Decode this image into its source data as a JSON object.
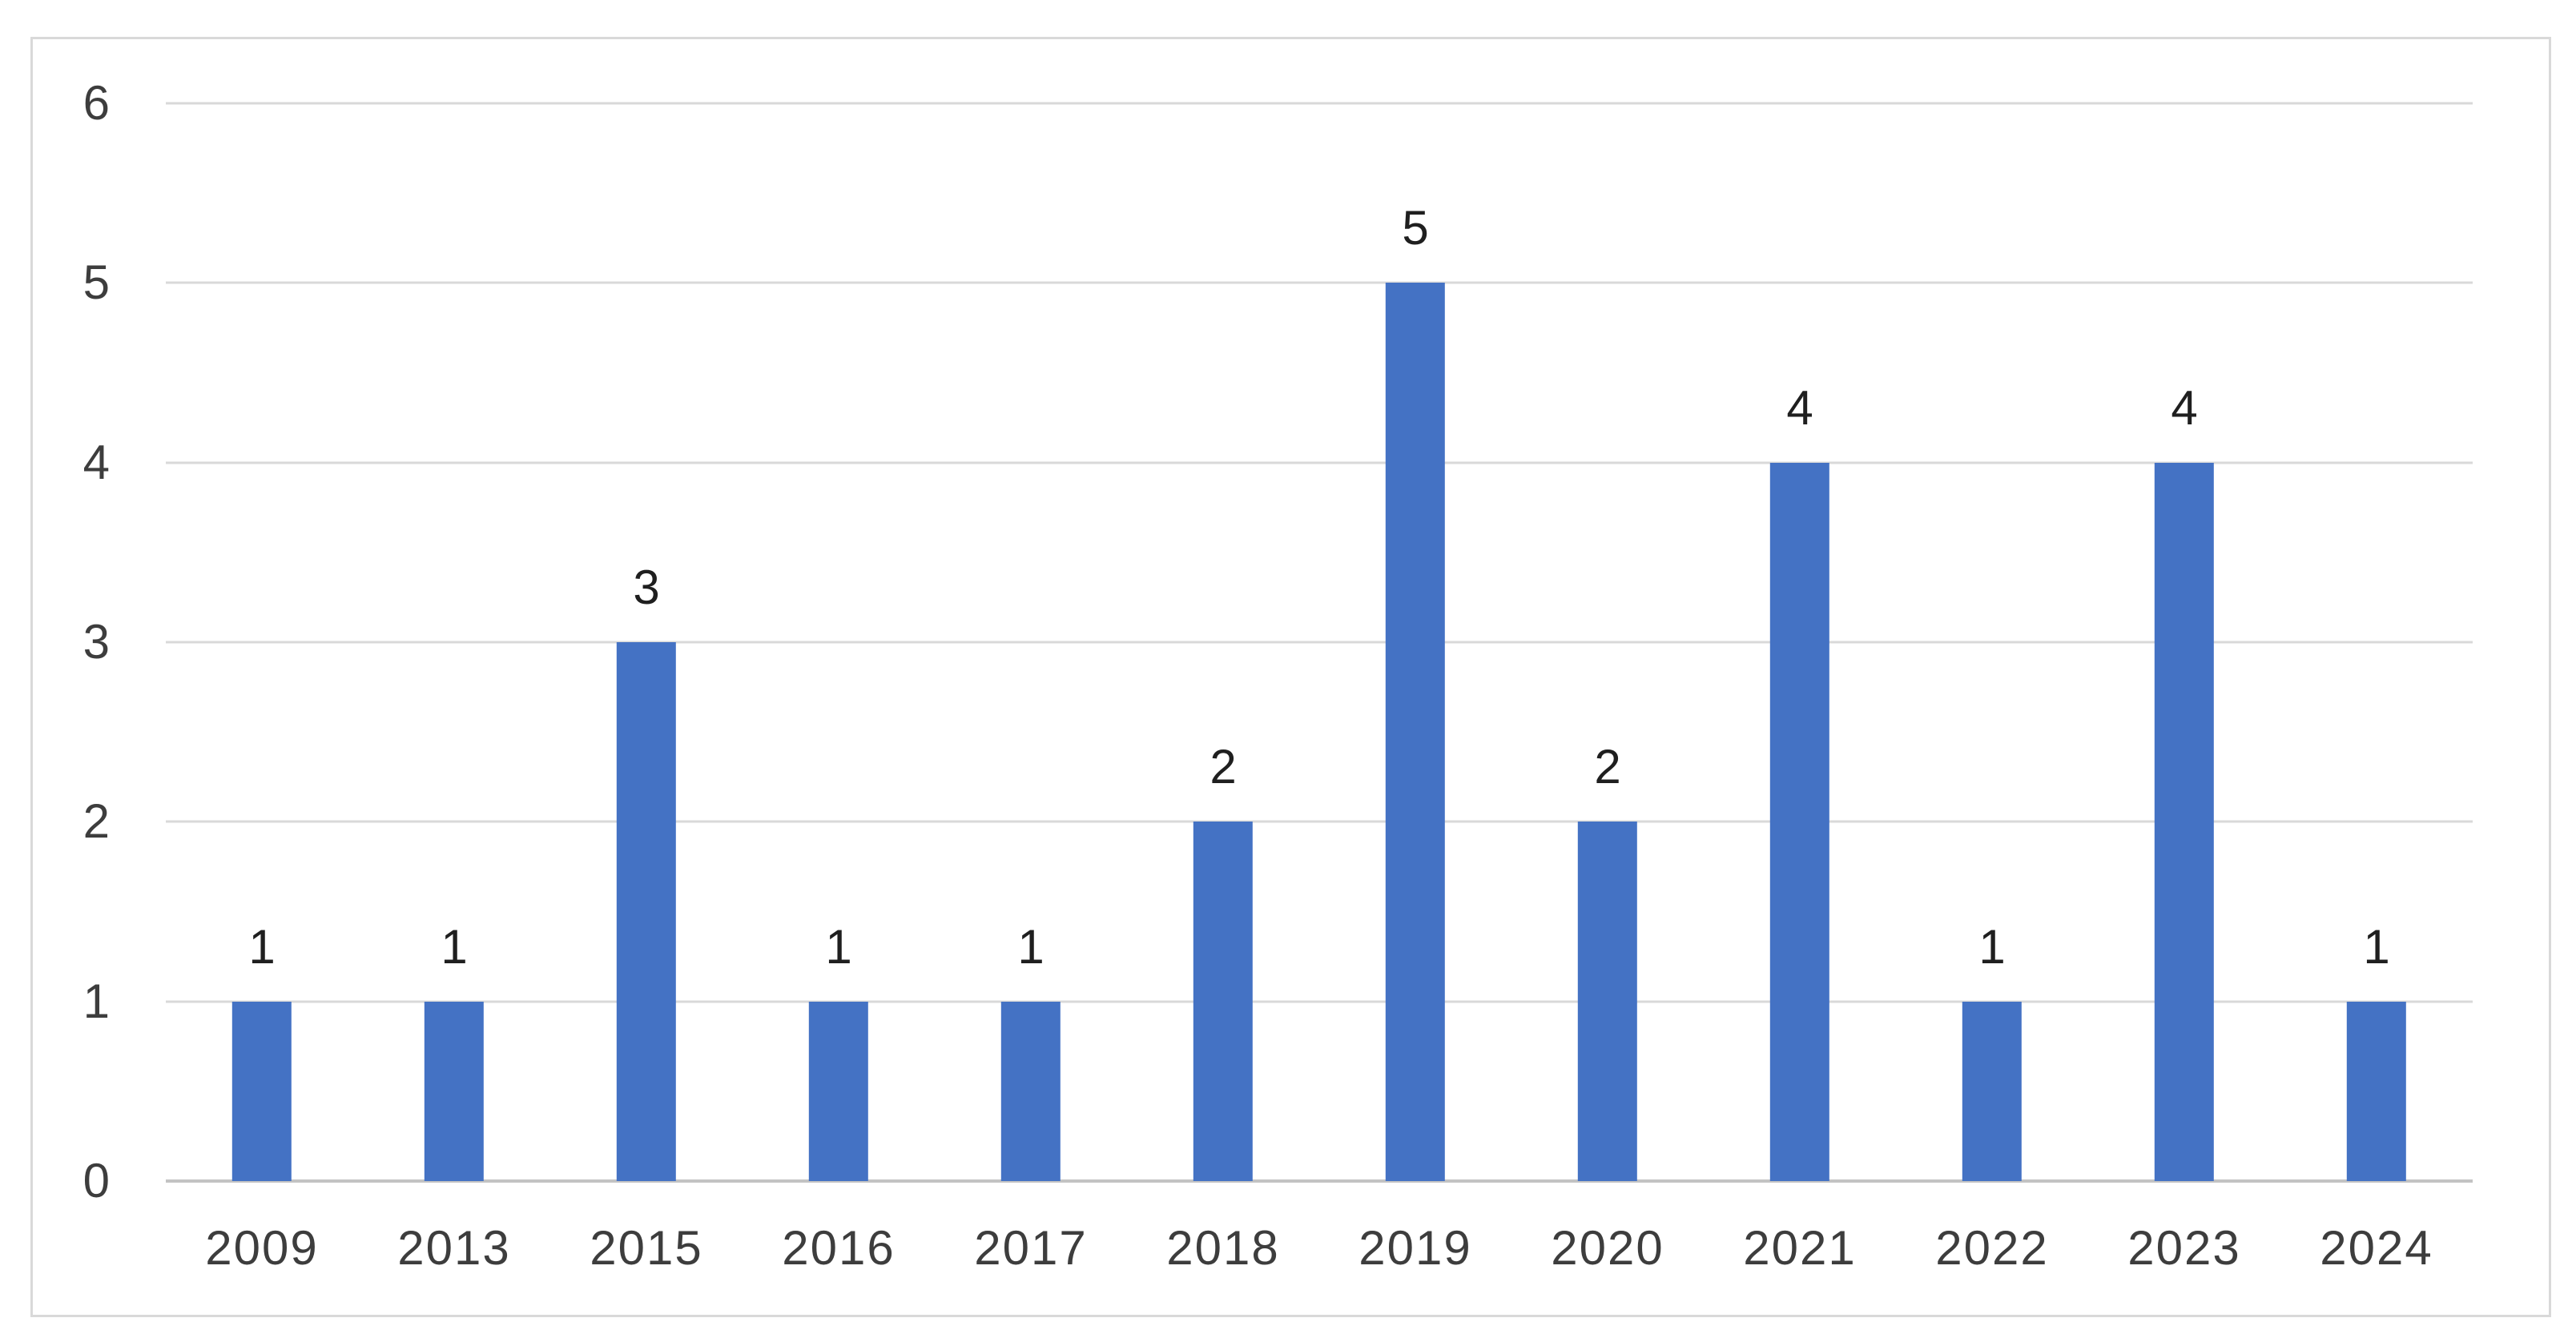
{
  "chart_data": {
    "type": "bar",
    "title": "",
    "xlabel": "",
    "ylabel": "",
    "categories": [
      "2009",
      "2013",
      "2015",
      "2016",
      "2017",
      "2018",
      "2019",
      "2020",
      "2021",
      "2022",
      "2023",
      "2024"
    ],
    "values": [
      1,
      1,
      3,
      1,
      1,
      2,
      5,
      2,
      4,
      1,
      4,
      1
    ],
    "data_labels": [
      "1",
      "1",
      "3",
      "1",
      "1",
      "2",
      "5",
      "2",
      "4",
      "1",
      "4",
      "1"
    ],
    "ylim": [
      0,
      6
    ],
    "yticks": [
      "0",
      "1",
      "2",
      "3",
      "4",
      "5",
      "6"
    ],
    "grid": true,
    "legend": false,
    "colors": {
      "bar": "#4472c4",
      "gridline": "#d9d9d9",
      "axis_line": "#c3c3c3",
      "frame_border": "#d9d9d9",
      "tick_label": "#3d3d3d",
      "data_label": "#1f1f1f",
      "background": "#ffffff"
    }
  }
}
